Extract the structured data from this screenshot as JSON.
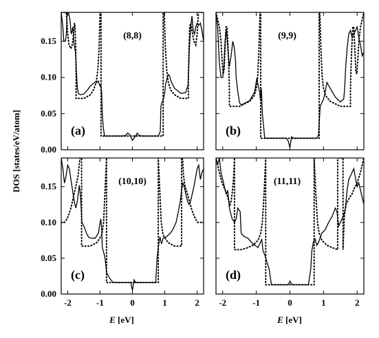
{
  "figure": {
    "ylabel_text": "DOS [states/eV/atom]",
    "xlabel_var": "E",
    "xlabel_unit": " [eV]"
  },
  "chart_data": [
    {
      "type": "line",
      "panel_tag": "(a)",
      "title": "(8,8)",
      "xlim": [
        -2.2,
        2.2
      ],
      "ylim": [
        0,
        0.19
      ],
      "xticks": [
        -2,
        -1,
        0,
        1,
        2
      ],
      "yticks": [
        0.0,
        0.05,
        0.1,
        0.15
      ],
      "show_xticklabels": false,
      "show_yticklabels": true,
      "series": [
        {
          "style": "solid",
          "x": [
            -2.2,
            -2.15,
            -2.12,
            -2.09,
            -2.07,
            -2.04,
            -2.02,
            -1.98,
            -1.93,
            -1.89,
            -1.86,
            -1.84,
            -1.8,
            -1.76,
            -1.72,
            -1.7,
            -1.68,
            -1.66,
            -1.6,
            -1.5,
            -1.4,
            -1.3,
            -1.2,
            -1.15,
            -1.1,
            -1.05,
            -1.02,
            -1.0,
            -0.98,
            -0.95,
            -0.93,
            -0.9,
            -0.86,
            -0.8,
            -0.5,
            -0.3,
            -0.2,
            -0.15,
            -0.08,
            0.0,
            0.08,
            0.15,
            0.2,
            0.3,
            0.5,
            0.8,
            0.86,
            0.88,
            0.9,
            0.93,
            0.97,
            1.0,
            1.03,
            1.08,
            1.12,
            1.15,
            1.2,
            1.3,
            1.5,
            1.65,
            1.72,
            1.76,
            1.8,
            1.84,
            1.88,
            1.92,
            1.96,
            2.0,
            2.05,
            2.1,
            2.15,
            2.2
          ],
          "y": [
            0.19,
            0.17,
            0.15,
            0.15,
            0.15,
            0.16,
            0.19,
            0.19,
            0.18,
            0.16,
            0.165,
            0.17,
            0.145,
            0.135,
            0.1,
            0.085,
            0.08,
            0.077,
            0.076,
            0.077,
            0.082,
            0.088,
            0.092,
            0.094,
            0.093,
            0.095,
            0.09,
            0.088,
            0.09,
            0.08,
            0.05,
            0.03,
            0.019,
            0.019,
            0.019,
            0.019,
            0.02,
            0.023,
            0.021,
            0.013,
            0.018,
            0.023,
            0.02,
            0.019,
            0.019,
            0.019,
            0.025,
            0.06,
            0.063,
            0.067,
            0.072,
            0.08,
            0.092,
            0.1,
            0.104,
            0.102,
            0.094,
            0.085,
            0.078,
            0.079,
            0.09,
            0.14,
            0.17,
            0.185,
            0.165,
            0.16,
            0.17,
            0.175,
            0.172,
            0.175,
            0.165,
            0.15
          ]
        },
        {
          "style": "dotted",
          "x": [
            -2.2,
            -2.12,
            -2.08,
            -2.04,
            -2.0,
            -1.96,
            -1.9,
            -1.86,
            -1.83,
            -1.81,
            -1.79,
            -1.77,
            -1.75,
            -1.74,
            -1.74,
            -1.5,
            -1.3,
            -1.2,
            -1.12,
            -1.07,
            -1.03,
            -1.0,
            -0.97,
            -0.97,
            -0.5,
            0.0,
            0.5,
            0.95,
            0.95,
            0.98,
            1.02,
            1.06,
            1.11,
            1.18,
            1.3,
            1.5,
            1.73,
            1.73,
            1.75,
            1.77,
            1.8,
            1.84,
            1.9,
            1.96,
            2.0,
            2.04,
            2.08,
            2.12,
            2.2
          ],
          "y": [
            0.19,
            0.19,
            0.19,
            0.19,
            0.16,
            0.145,
            0.14,
            0.145,
            0.155,
            0.165,
            0.175,
            0.17,
            0.14,
            0.1,
            0.071,
            0.071,
            0.076,
            0.083,
            0.093,
            0.11,
            0.14,
            0.19,
            0.19,
            0.019,
            0.019,
            0.019,
            0.019,
            0.019,
            0.19,
            0.19,
            0.14,
            0.11,
            0.093,
            0.083,
            0.076,
            0.071,
            0.071,
            0.1,
            0.14,
            0.17,
            0.175,
            0.165,
            0.15,
            0.145,
            0.16,
            0.19,
            0.19,
            0.19,
            0.19
          ]
        }
      ]
    },
    {
      "type": "line",
      "panel_tag": "(b)",
      "title": "(9,9)",
      "xlim": [
        -2.2,
        2.2
      ],
      "ylim": [
        0,
        0.19
      ],
      "xticks": [
        -2,
        -1,
        0,
        1,
        2
      ],
      "yticks": [
        0.0,
        0.05,
        0.1,
        0.15
      ],
      "show_xticklabels": false,
      "show_yticklabels": false,
      "series": [
        {
          "style": "solid",
          "x": [
            -2.2,
            -2.15,
            -2.1,
            -2.05,
            -2.0,
            -1.97,
            -1.95,
            -1.93,
            -1.9,
            -1.87,
            -1.84,
            -1.8,
            -1.75,
            -1.7,
            -1.66,
            -1.62,
            -1.6,
            -1.55,
            -1.5,
            -1.45,
            -1.4,
            -1.2,
            -1.05,
            -0.98,
            -0.95,
            -0.9,
            -0.88,
            -0.85,
            -0.82,
            -0.75,
            -0.5,
            -0.2,
            -0.1,
            -0.05,
            0.0,
            0.05,
            0.1,
            0.2,
            0.5,
            0.8,
            0.85,
            0.9,
            0.95,
            1.0,
            1.05,
            1.1,
            1.2,
            1.35,
            1.5,
            1.6,
            1.63,
            1.66,
            1.7,
            1.75,
            1.8,
            1.85,
            1.9,
            1.95,
            2.0,
            2.05,
            2.1,
            2.15,
            2.2
          ],
          "y": [
            0.19,
            0.17,
            0.12,
            0.1,
            0.1,
            0.11,
            0.13,
            0.15,
            0.165,
            0.155,
            0.135,
            0.115,
            0.13,
            0.15,
            0.142,
            0.125,
            0.1,
            0.08,
            0.065,
            0.062,
            0.063,
            0.068,
            0.08,
            0.1,
            0.09,
            0.08,
            0.07,
            0.085,
            0.05,
            0.016,
            0.016,
            0.016,
            0.016,
            0.012,
            0.003,
            0.018,
            0.016,
            0.016,
            0.016,
            0.016,
            0.02,
            0.06,
            0.065,
            0.07,
            0.08,
            0.093,
            0.085,
            0.073,
            0.066,
            0.07,
            0.085,
            0.115,
            0.14,
            0.16,
            0.165,
            0.155,
            0.16,
            0.165,
            0.17,
            0.155,
            0.145,
            0.13,
            0.135
          ]
        },
        {
          "style": "dotted",
          "x": [
            -2.2,
            -2.1,
            -2.05,
            -2.02,
            -1.99,
            -1.96,
            -1.93,
            -1.9,
            -1.87,
            -1.85,
            -1.83,
            -1.81,
            -1.8,
            -1.8,
            -1.5,
            -1.2,
            -1.06,
            -1.0,
            -0.96,
            -0.92,
            -0.89,
            -0.87,
            -0.87,
            -0.5,
            0.0,
            0.5,
            0.87,
            0.87,
            0.89,
            0.92,
            0.96,
            1.0,
            1.06,
            1.2,
            1.5,
            1.8,
            1.8,
            1.81,
            1.83,
            1.85,
            1.87,
            1.9,
            1.93,
            1.96,
            1.99,
            2.02,
            2.05,
            2.1,
            2.2
          ],
          "y": [
            0.19,
            0.17,
            0.15,
            0.125,
            0.105,
            0.11,
            0.14,
            0.17,
            0.17,
            0.15,
            0.13,
            0.1,
            0.08,
            0.06,
            0.06,
            0.067,
            0.075,
            0.085,
            0.1,
            0.14,
            0.19,
            0.19,
            0.016,
            0.016,
            0.016,
            0.016,
            0.016,
            0.19,
            0.19,
            0.14,
            0.1,
            0.085,
            0.075,
            0.067,
            0.06,
            0.06,
            0.08,
            0.1,
            0.13,
            0.15,
            0.17,
            0.17,
            0.14,
            0.11,
            0.105,
            0.125,
            0.15,
            0.17,
            0.19
          ]
        }
      ]
    },
    {
      "type": "line",
      "panel_tag": "(c)",
      "title": "(10,10)",
      "xlim": [
        -2.2,
        2.2
      ],
      "ylim": [
        0,
        0.19
      ],
      "xticks": [
        -2,
        -1,
        0,
        1,
        2
      ],
      "yticks": [
        0.0,
        0.05,
        0.1,
        0.15
      ],
      "show_xticklabels": true,
      "show_yticklabels": true,
      "series": [
        {
          "style": "solid",
          "x": [
            -2.2,
            -2.15,
            -2.1,
            -2.05,
            -2.0,
            -1.95,
            -1.9,
            -1.85,
            -1.8,
            -1.75,
            -1.7,
            -1.66,
            -1.64,
            -1.6,
            -1.56,
            -1.5,
            -1.42,
            -1.35,
            -1.25,
            -1.15,
            -1.05,
            -0.98,
            -0.95,
            -0.93,
            -0.9,
            -0.87,
            -0.84,
            -0.8,
            -0.7,
            -0.6,
            -0.4,
            -0.2,
            -0.05,
            0.0,
            0.05,
            0.1,
            0.2,
            0.4,
            0.6,
            0.72,
            0.76,
            0.8,
            0.85,
            0.9,
            0.95,
            1.05,
            1.15,
            1.25,
            1.35,
            1.42,
            1.48,
            1.52,
            1.56,
            1.6,
            1.65,
            1.7,
            1.75,
            1.8,
            1.9,
            2.0,
            2.05,
            2.1,
            2.15,
            2.2
          ],
          "y": [
            0.19,
            0.175,
            0.155,
            0.165,
            0.18,
            0.175,
            0.16,
            0.145,
            0.13,
            0.12,
            0.13,
            0.145,
            0.152,
            0.135,
            0.1,
            0.095,
            0.085,
            0.079,
            0.078,
            0.078,
            0.085,
            0.105,
            0.092,
            0.065,
            0.06,
            0.055,
            0.048,
            0.03,
            0.022,
            0.016,
            0.016,
            0.016,
            0.016,
            0.005,
            0.02,
            0.016,
            0.016,
            0.016,
            0.016,
            0.016,
            0.05,
            0.065,
            0.08,
            0.07,
            0.078,
            0.08,
            0.084,
            0.09,
            0.1,
            0.115,
            0.13,
            0.145,
            0.155,
            0.15,
            0.14,
            0.13,
            0.125,
            0.13,
            0.15,
            0.175,
            0.18,
            0.16,
            0.17,
            0.175
          ]
        },
        {
          "style": "dotted",
          "x": [
            -2.2,
            -2.1,
            -2.02,
            -1.96,
            -1.9,
            -1.85,
            -1.8,
            -1.75,
            -1.68,
            -1.62,
            -1.59,
            -1.57,
            -1.57,
            -1.3,
            -1.1,
            -0.95,
            -0.89,
            -0.85,
            -0.8,
            -0.8,
            -0.5,
            0.0,
            0.5,
            0.8,
            0.8,
            0.85,
            0.89,
            0.95,
            1.1,
            1.3,
            1.52,
            1.52,
            1.55,
            1.58,
            1.63,
            1.7,
            1.76,
            1.82,
            1.88,
            1.95,
            2.02,
            2.1,
            2.2
          ],
          "y": [
            0.1,
            0.1,
            0.105,
            0.112,
            0.12,
            0.13,
            0.14,
            0.15,
            0.165,
            0.19,
            0.19,
            0.19,
            0.067,
            0.067,
            0.072,
            0.082,
            0.1,
            0.14,
            0.19,
            0.016,
            0.016,
            0.016,
            0.016,
            0.016,
            0.19,
            0.14,
            0.1,
            0.082,
            0.072,
            0.067,
            0.067,
            0.19,
            0.19,
            0.165,
            0.15,
            0.14,
            0.13,
            0.12,
            0.112,
            0.105,
            0.1,
            0.1,
            0.1
          ]
        }
      ]
    },
    {
      "type": "line",
      "panel_tag": "(d)",
      "title": "(11,11)",
      "xlim": [
        -2.2,
        2.2
      ],
      "ylim": [
        0,
        0.19
      ],
      "xticks": [
        -2,
        -1,
        0,
        1,
        2
      ],
      "yticks": [
        0.0,
        0.05,
        0.1,
        0.15
      ],
      "show_xticklabels": true,
      "show_yticklabels": false,
      "series": [
        {
          "style": "solid",
          "x": [
            -2.2,
            -2.15,
            -2.1,
            -2.05,
            -2.0,
            -1.95,
            -1.9,
            -1.87,
            -1.85,
            -1.8,
            -1.72,
            -1.65,
            -1.6,
            -1.55,
            -1.48,
            -1.45,
            -1.4,
            -1.35,
            -1.25,
            -1.1,
            -0.95,
            -0.88,
            -0.84,
            -0.8,
            -0.75,
            -0.7,
            -0.62,
            -0.55,
            -0.3,
            -0.05,
            0.0,
            0.05,
            0.1,
            0.3,
            0.55,
            0.62,
            0.65,
            0.7,
            0.75,
            0.8,
            0.85,
            0.95,
            1.05,
            1.15,
            1.25,
            1.35,
            1.4,
            1.45,
            1.5,
            1.55,
            1.6,
            1.65,
            1.7,
            1.75,
            1.8,
            1.85,
            1.9,
            2.0,
            2.05,
            2.1,
            2.15,
            2.2
          ],
          "y": [
            0.19,
            0.18,
            0.19,
            0.17,
            0.16,
            0.15,
            0.14,
            0.142,
            0.145,
            0.12,
            0.105,
            0.1,
            0.105,
            0.12,
            0.115,
            0.085,
            0.082,
            0.08,
            0.078,
            0.07,
            0.065,
            0.072,
            0.077,
            0.06,
            0.055,
            0.047,
            0.035,
            0.013,
            0.013,
            0.013,
            0.018,
            0.014,
            0.013,
            0.013,
            0.013,
            0.035,
            0.06,
            0.073,
            0.077,
            0.068,
            0.072,
            0.085,
            0.09,
            0.1,
            0.108,
            0.12,
            0.115,
            0.095,
            0.1,
            0.105,
            0.11,
            0.12,
            0.145,
            0.16,
            0.165,
            0.17,
            0.175,
            0.15,
            0.155,
            0.145,
            0.135,
            0.125
          ]
        },
        {
          "style": "dotted",
          "x": [
            -2.2,
            -2.1,
            -2.02,
            -1.95,
            -1.88,
            -1.82,
            -1.78,
            -1.75,
            -1.72,
            -1.68,
            -1.65,
            -1.65,
            -1.45,
            -1.45,
            -1.3,
            -1.1,
            -0.95,
            -0.87,
            -0.82,
            -0.77,
            -0.72,
            -0.72,
            -0.5,
            0.0,
            0.5,
            0.72,
            0.72,
            0.77,
            0.82,
            0.87,
            0.95,
            1.1,
            1.3,
            1.42,
            1.42,
            1.58,
            1.58,
            1.62,
            1.67,
            1.72,
            1.78,
            1.85,
            1.92,
            2.0,
            2.1,
            2.2
          ],
          "y": [
            0.19,
            0.17,
            0.155,
            0.148,
            0.14,
            0.13,
            0.125,
            0.13,
            0.14,
            0.16,
            0.19,
            0.062,
            0.062,
            0.062,
            0.064,
            0.068,
            0.075,
            0.085,
            0.1,
            0.14,
            0.19,
            0.013,
            0.013,
            0.013,
            0.013,
            0.013,
            0.19,
            0.14,
            0.1,
            0.085,
            0.075,
            0.068,
            0.064,
            0.062,
            0.19,
            0.19,
            0.062,
            0.11,
            0.125,
            0.13,
            0.135,
            0.14,
            0.148,
            0.155,
            0.17,
            0.19
          ]
        }
      ]
    }
  ]
}
